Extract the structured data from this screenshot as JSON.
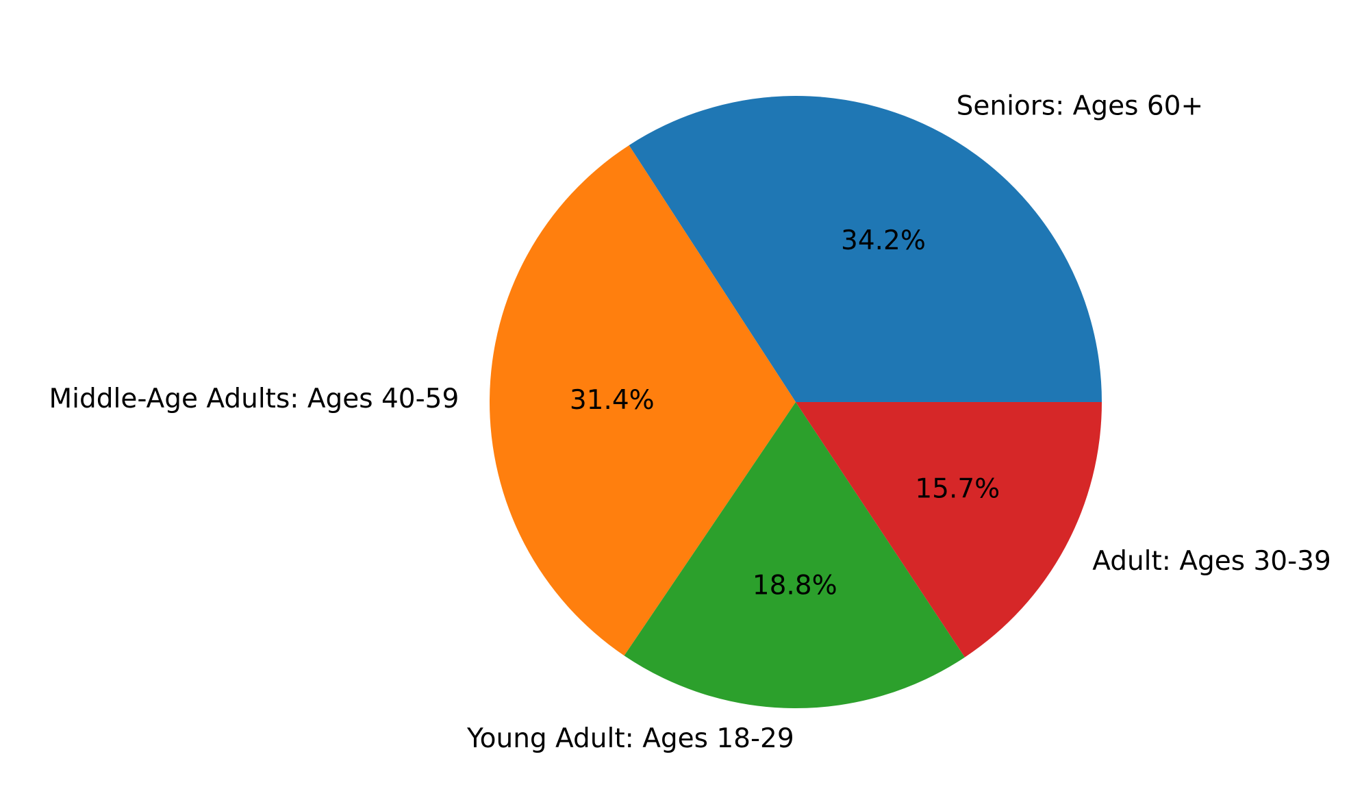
{
  "chart_data": {
    "type": "pie",
    "categories": [
      "Seniors: Ages 60+",
      "Middle-Age Adults: Ages 40-59",
      "Young Adult: Ages 18-29",
      "Adult: Ages 30-39"
    ],
    "values": [
      34.2,
      31.4,
      18.8,
      15.7
    ],
    "percent_labels": [
      "34.2%",
      "31.4%",
      "18.8%",
      "15.7%"
    ],
    "colors": [
      "#1f77b4",
      "#ff7f0e",
      "#2ca02c",
      "#d62728"
    ],
    "start_angle_deg": 0,
    "direction": "counterclockwise"
  }
}
